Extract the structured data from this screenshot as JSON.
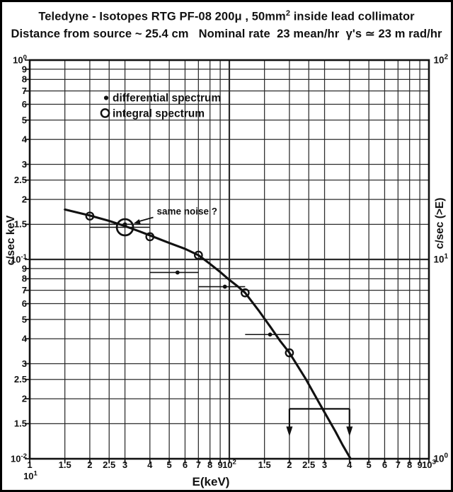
{
  "title": {
    "line1": {
      "prefix": "Teledyne - Isotopes RTG PF-08 200μ , 50mm",
      "sup": "2",
      "suffix": " inside lead collimator"
    },
    "line2": "Distance from source ~ 25.4 cm   Nominal rate  23 mean/hr  γ's ≃ 23 m rad/hr"
  },
  "chart_data": {
    "type": "scatter",
    "xscale": "log",
    "yscale": "log",
    "xlim": [
      10,
      1000
    ],
    "ylim_left": [
      0.01,
      1
    ],
    "ylim_right": [
      1,
      100
    ],
    "xlabel": "E(keV)",
    "ylabel_left": "c/sec keV",
    "ylabel_right": "c/sec (>E)",
    "grid": true,
    "grid_multipliers": [
      1,
      1.5,
      2,
      2.5,
      3,
      4,
      5,
      6,
      7,
      8,
      9
    ],
    "x_ticks": [
      {
        "v": 10,
        "t": "1",
        "t2": "10^1"
      },
      {
        "v": 15,
        "t": "1.5"
      },
      {
        "v": 20,
        "t": "2"
      },
      {
        "v": 25,
        "t": "2.5"
      },
      {
        "v": 30,
        "t": "3"
      },
      {
        "v": 40,
        "t": "4"
      },
      {
        "v": 50,
        "t": "5"
      },
      {
        "v": 60,
        "t": "6"
      },
      {
        "v": 70,
        "t": "7"
      },
      {
        "v": 80,
        "t": "8"
      },
      {
        "v": 90,
        "t": "9"
      },
      {
        "v": 100,
        "t": "10^2"
      },
      {
        "v": 150,
        "t": "1.5"
      },
      {
        "v": 200,
        "t": "2"
      },
      {
        "v": 250,
        "t": "2.5"
      },
      {
        "v": 300,
        "t": "3"
      },
      {
        "v": 400,
        "t": "4"
      },
      {
        "v": 500,
        "t": "5"
      },
      {
        "v": 600,
        "t": "6"
      },
      {
        "v": 700,
        "t": "7"
      },
      {
        "v": 800,
        "t": "8"
      },
      {
        "v": 900,
        "t": "9"
      },
      {
        "v": 1000,
        "t": "10^3"
      }
    ],
    "y_ticks_left": [
      {
        "v": 1,
        "t": "10^0"
      },
      {
        "v": 0.9,
        "t": "9"
      },
      {
        "v": 0.8,
        "t": "8"
      },
      {
        "v": 0.7,
        "t": "7"
      },
      {
        "v": 0.6,
        "t": "6"
      },
      {
        "v": 0.5,
        "t": "5"
      },
      {
        "v": 0.4,
        "t": "4"
      },
      {
        "v": 0.3,
        "t": "3"
      },
      {
        "v": 0.25,
        "t": "2.5"
      },
      {
        "v": 0.2,
        "t": "2"
      },
      {
        "v": 0.15,
        "t": "1.5"
      },
      {
        "v": 0.1,
        "t": "10^-1"
      },
      {
        "v": 0.09,
        "t": "9"
      },
      {
        "v": 0.08,
        "t": "8"
      },
      {
        "v": 0.07,
        "t": "7"
      },
      {
        "v": 0.06,
        "t": "6"
      },
      {
        "v": 0.05,
        "t": "5"
      },
      {
        "v": 0.04,
        "t": "4"
      },
      {
        "v": 0.03,
        "t": "3"
      },
      {
        "v": 0.025,
        "t": "2.5"
      },
      {
        "v": 0.02,
        "t": "2"
      },
      {
        "v": 0.015,
        "t": "1.5"
      },
      {
        "v": 0.01,
        "t": "10^-2"
      }
    ],
    "y_ticks_right": [
      {
        "v": 100,
        "t": "10^2"
      },
      {
        "v": 10,
        "t": "10^1"
      },
      {
        "v": 1,
        "t": "10^0"
      }
    ],
    "series": [
      {
        "name": "differential spectrum",
        "marker": "dot",
        "points": [
          {
            "x": 30,
            "y": 0.15,
            "xerr": [
              20,
              40
            ]
          },
          {
            "x": 55,
            "y": 0.086,
            "xerr": [
              40,
              70
            ]
          },
          {
            "x": 95,
            "y": 0.073,
            "xerr": [
              70,
              120
            ]
          },
          {
            "x": 160,
            "y": 0.042,
            "xerr": [
              120,
              200
            ]
          }
        ]
      },
      {
        "name": "integral spectrum",
        "marker": "open-circle",
        "points": [
          {
            "x": 20,
            "y": 0.165
          },
          {
            "x": 30,
            "y": 0.145,
            "emphasis": true,
            "xerr": [
              20,
              40
            ]
          },
          {
            "x": 40,
            "y": 0.13
          },
          {
            "x": 70,
            "y": 0.105
          },
          {
            "x": 120,
            "y": 0.068
          },
          {
            "x": 200,
            "y": 0.034
          }
        ]
      }
    ],
    "curve_points": [
      [
        15,
        0.178
      ],
      [
        20,
        0.166
      ],
      [
        25,
        0.156
      ],
      [
        30,
        0.147
      ],
      [
        35,
        0.139
      ],
      [
        40,
        0.132
      ],
      [
        50,
        0.121
      ],
      [
        60,
        0.113
      ],
      [
        70,
        0.105
      ],
      [
        80,
        0.095
      ],
      [
        90,
        0.0865
      ],
      [
        100,
        0.079
      ],
      [
        110,
        0.0733
      ],
      [
        120,
        0.068
      ],
      [
        140,
        0.0556
      ],
      [
        160,
        0.0461
      ],
      [
        180,
        0.0389
      ],
      [
        200,
        0.034
      ],
      [
        240,
        0.0254
      ],
      [
        280,
        0.0193
      ],
      [
        300,
        0.0171
      ],
      [
        340,
        0.0137
      ],
      [
        370,
        0.0117
      ],
      [
        405,
        0.01
      ]
    ],
    "annotation": {
      "text": "same noise ?"
    },
    "bracket": {
      "x_from": 200,
      "x_to": 400,
      "y": 0.0178
    },
    "colors": {
      "ink": "#111111",
      "grid": "#2b2b2b",
      "background": "#ffffff"
    }
  }
}
